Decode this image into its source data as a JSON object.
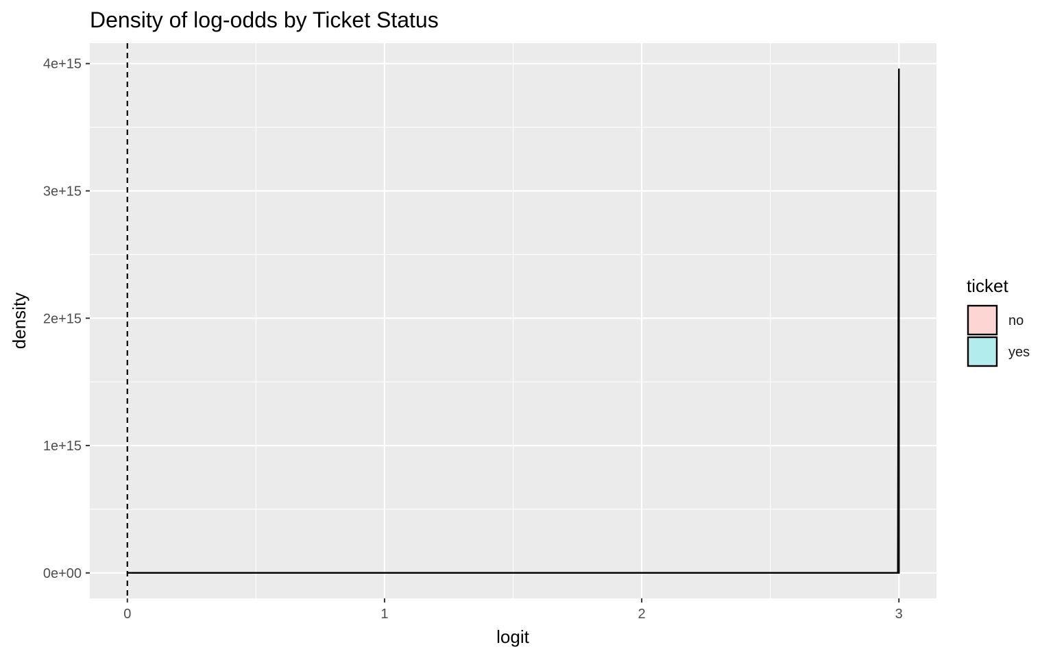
{
  "chart_data": {
    "type": "area",
    "title": "Density of log-odds by Ticket Status",
    "xlabel": "logit",
    "ylabel": "density",
    "xlim": [
      -0.146,
      3.146
    ],
    "ylim": [
      -200000000000000.0,
      4160000000000000.0
    ],
    "x_ticks": [
      0,
      1,
      2,
      3
    ],
    "x_tick_labels": [
      "0",
      "1",
      "2",
      "3"
    ],
    "y_ticks": [
      0,
      1000000000000000.0,
      2000000000000000.0,
      3000000000000000.0,
      4000000000000000.0
    ],
    "y_tick_labels": [
      "0e+00",
      "1e+15",
      "2e+15",
      "3e+15",
      "4e+15"
    ],
    "grid": true,
    "reference_line": {
      "x": 0,
      "style": "dashed"
    },
    "legend": {
      "title": "ticket",
      "position": "right",
      "entries": [
        {
          "name": "no",
          "color": "#F8766D"
        },
        {
          "name": "yes",
          "color": "#00BFC4"
        }
      ]
    },
    "series": [
      {
        "name": "no",
        "color": "#F8766D",
        "x": [
          0,
          2.996,
          3.0,
          3.0
        ],
        "y": [
          0,
          0,
          3960000000000000.0,
          0
        ]
      },
      {
        "name": "yes",
        "color": "#00BFC4",
        "x": [
          0,
          3.0
        ],
        "y": [
          0,
          0
        ]
      }
    ],
    "colors": {
      "panel_background": "#EBEBEB",
      "grid_major": "#FFFFFF",
      "outline": "#000000"
    }
  }
}
